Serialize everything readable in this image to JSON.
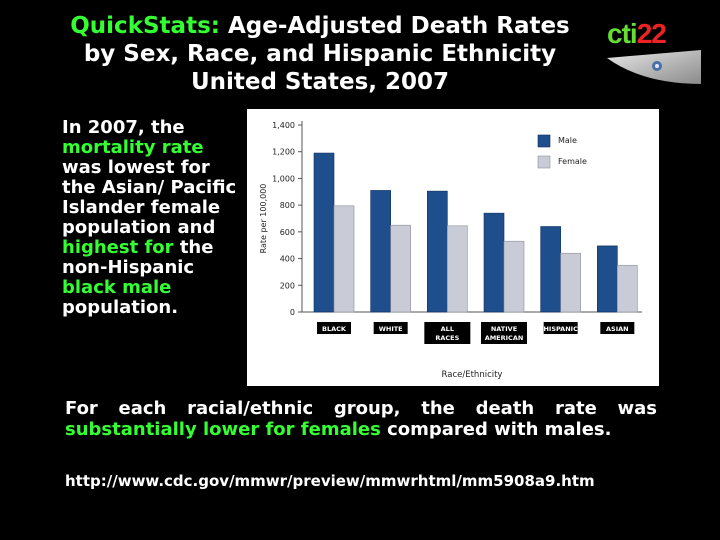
{
  "slide": {
    "title_highlight": "QuickStats:",
    "title_rest_line1": " Age-Adjusted Death Rates",
    "title_line2": "by Sex, Race, and Hispanic Ethnicity",
    "title_line3": "United States, 2007",
    "logo_cti": "cti",
    "logo_num": "22",
    "left": {
      "p1": "In 2007, the ",
      "h1": "mortality rate",
      "p2": " was lowest for the Asian/ Pacific Islander female population and ",
      "h2": "highest for",
      "p3": " the non-Hispanic ",
      "h3": "black male",
      "p4": " population."
    },
    "bottom": {
      "p1": "For each racial/ethnic group, the death rate was ",
      "h1": "substantially lower for females",
      "p2": " compared with males."
    },
    "url": "http://www.cdc.gov/mmwr/preview/mmwrhtml/mm5908a9.htm"
  },
  "colors": {
    "male": "#1f4e8c",
    "female": "#c9cbd6",
    "highlight": "#33ff33"
  },
  "chart_data": {
    "type": "bar",
    "categories": [
      "BLACK",
      "WHITE",
      "ALL RACES",
      "NATIVE AMERICAN",
      "HISPANIC",
      "ASIAN"
    ],
    "series": [
      {
        "name": "Male",
        "values": [
          1190,
          910,
          905,
          740,
          640,
          495
        ]
      },
      {
        "name": "Female",
        "values": [
          795,
          650,
          645,
          530,
          440,
          350
        ]
      }
    ],
    "xlabel": "Race/Ethnicity",
    "ylabel": "Rate per 100,000",
    "ylim": [
      0,
      1400
    ],
    "yticks": [
      "0",
      "200",
      "400",
      "600",
      "800",
      "1,000",
      "1,200",
      "1,400"
    ],
    "legend": "top-right"
  }
}
